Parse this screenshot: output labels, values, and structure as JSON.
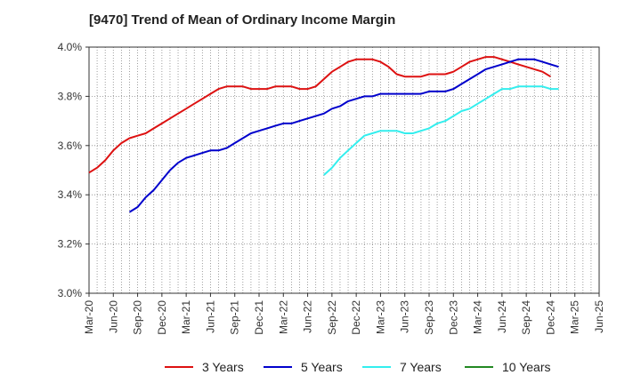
{
  "chart_data": {
    "type": "line",
    "title": "[9470]  Trend of Mean of Ordinary Income Margin",
    "xlabel": "",
    "ylabel": "",
    "ylim": [
      3.0,
      4.0
    ],
    "y_ticks": [
      "3.0%",
      "3.2%",
      "3.4%",
      "3.6%",
      "3.8%",
      "4.0%"
    ],
    "x_ticks": [
      "Mar-20",
      "Jun-20",
      "Sep-20",
      "Dec-20",
      "Mar-21",
      "Jun-21",
      "Sep-21",
      "Dec-21",
      "Mar-22",
      "Jun-22",
      "Sep-22",
      "Dec-22",
      "Mar-23",
      "Jun-23",
      "Sep-23",
      "Dec-23",
      "Mar-24",
      "Jun-24",
      "Sep-24",
      "Dec-24",
      "Mar-25",
      "Jun-25"
    ],
    "grid": true,
    "legend_position": "bottom",
    "series": [
      {
        "name": "3 Years",
        "color": "#dd1111",
        "start_month": "Mar-20",
        "values": [
          3.49,
          3.51,
          3.54,
          3.58,
          3.61,
          3.63,
          3.64,
          3.65,
          3.67,
          3.69,
          3.71,
          3.73,
          3.75,
          3.77,
          3.79,
          3.81,
          3.83,
          3.84,
          3.84,
          3.84,
          3.83,
          3.83,
          3.83,
          3.84,
          3.84,
          3.84,
          3.83,
          3.83,
          3.84,
          3.87,
          3.9,
          3.92,
          3.94,
          3.95,
          3.95,
          3.95,
          3.94,
          3.92,
          3.89,
          3.88,
          3.88,
          3.88,
          3.89,
          3.89,
          3.89,
          3.9,
          3.92,
          3.94,
          3.95,
          3.96,
          3.96,
          3.95,
          3.94,
          3.93,
          3.92,
          3.91,
          3.9,
          3.88
        ]
      },
      {
        "name": "5 Years",
        "color": "#0000cc",
        "start_month": "Aug-20",
        "values": [
          3.33,
          3.35,
          3.39,
          3.42,
          3.46,
          3.5,
          3.53,
          3.55,
          3.56,
          3.57,
          3.58,
          3.58,
          3.59,
          3.61,
          3.63,
          3.65,
          3.66,
          3.67,
          3.68,
          3.69,
          3.69,
          3.7,
          3.71,
          3.72,
          3.73,
          3.75,
          3.76,
          3.78,
          3.79,
          3.8,
          3.8,
          3.81,
          3.81,
          3.81,
          3.81,
          3.81,
          3.81,
          3.82,
          3.82,
          3.82,
          3.83,
          3.85,
          3.87,
          3.89,
          3.91,
          3.92,
          3.93,
          3.94,
          3.95,
          3.95,
          3.95,
          3.94,
          3.93,
          3.92
        ]
      },
      {
        "name": "7 Years",
        "color": "#33eeee",
        "start_month": "Aug-22",
        "values": [
          3.48,
          3.51,
          3.55,
          3.58,
          3.61,
          3.64,
          3.65,
          3.66,
          3.66,
          3.66,
          3.65,
          3.65,
          3.66,
          3.67,
          3.69,
          3.7,
          3.72,
          3.74,
          3.75,
          3.77,
          3.79,
          3.81,
          3.83,
          3.83,
          3.84,
          3.84,
          3.84,
          3.84,
          3.83,
          3.83
        ]
      },
      {
        "name": "10 Years",
        "color": "#228822",
        "start_month": "",
        "values": []
      }
    ]
  }
}
